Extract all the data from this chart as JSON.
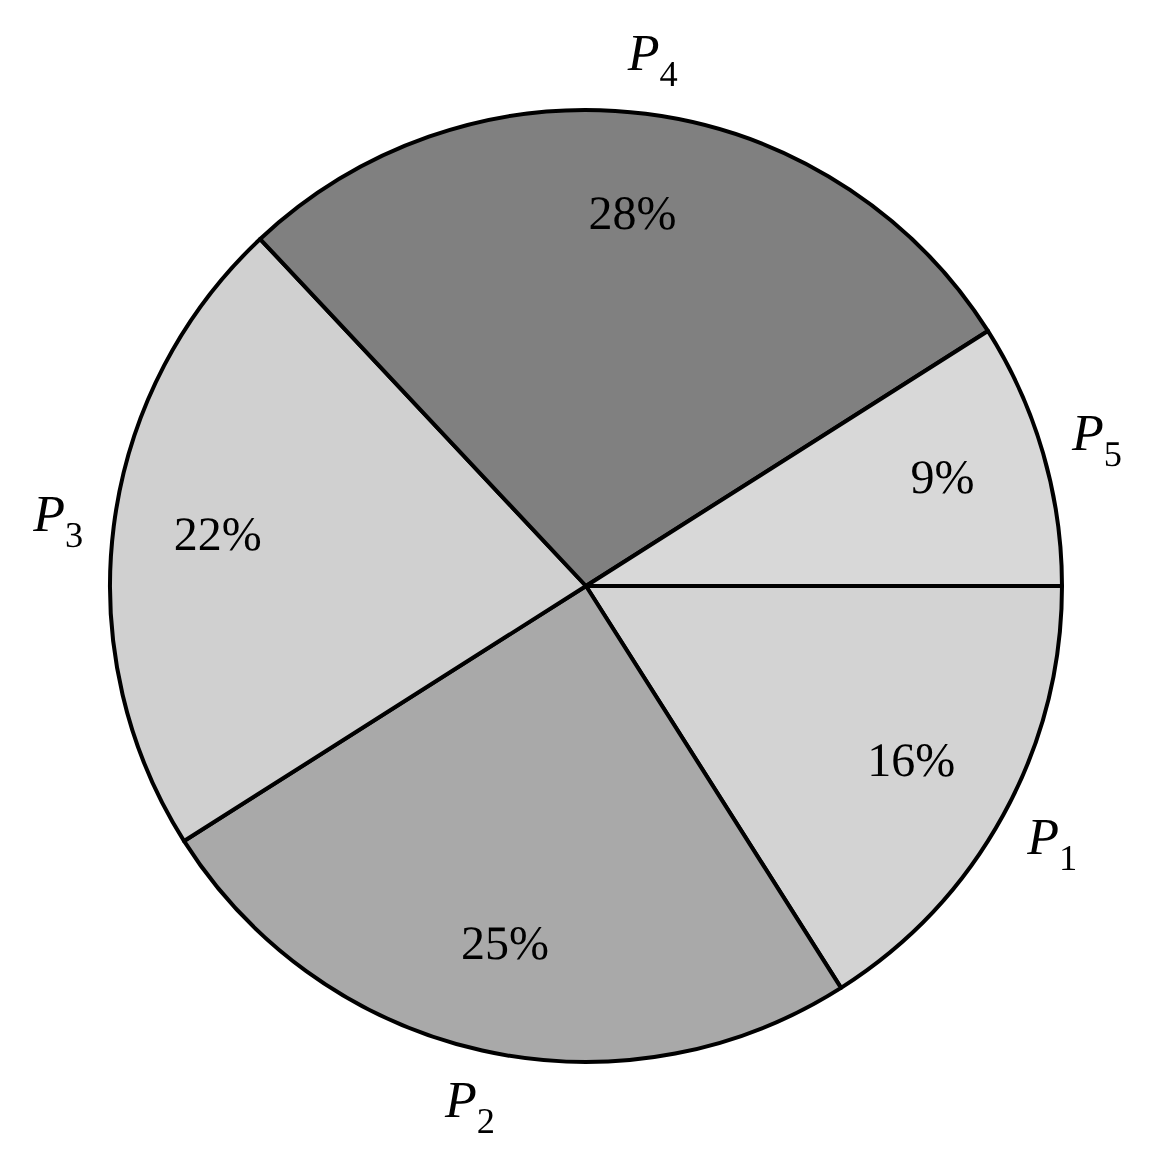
{
  "chart_data": {
    "type": "pie",
    "categories": [
      "P$_{1}$",
      "P$_{2}$",
      "P$_{3}$",
      "P$_{4}$",
      "P$_{5}$"
    ],
    "values": [
      16,
      25,
      22,
      28,
      9
    ],
    "value_labels": [
      "16%",
      "25%",
      "22%",
      "28%",
      "9%"
    ],
    "colors": [
      "#d3d3d3",
      "#a9a9a9",
      "#d0d0d0",
      "#808080",
      "#d8d8d8"
    ]
  }
}
